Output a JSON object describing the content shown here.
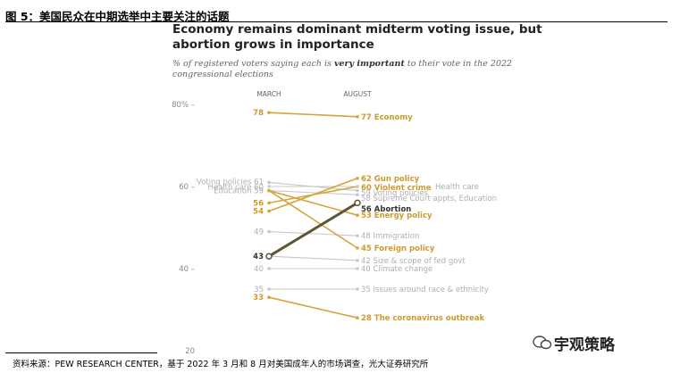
{
  "figure_title": "图 5：美国民众在中期选举中主要关注的话题",
  "source_note": "资料来源：PEW RESEARCH CENTER，基于 2022 年 3 月和 8 月对美国成年人的市场调查，光大证券研究所",
  "watermark": "宇观策略",
  "colors": {
    "accent": "#D4A53C",
    "muted": "#C8C8C8",
    "highlight": "#5E5534",
    "text_gold": "#CB9B2C",
    "text_grey": "#AFAFAF"
  },
  "chart_data": {
    "type": "line",
    "title": "Economy remains dominant midterm voting issue, but abortion grows in importance",
    "subtitle_prefix": "% of registered voters saying each is ",
    "subtitle_bold": "very important",
    "subtitle_suffix": " to their vote in the 2022 congressional elections",
    "x": [
      "MARCH",
      "AUGUST"
    ],
    "ylim": [
      20,
      80
    ],
    "yticks": [
      {
        "value": 80,
        "label": "80% –"
      },
      {
        "value": 60,
        "label": "60 –"
      },
      {
        "value": 40,
        "label": "40 –"
      },
      {
        "value": 20,
        "label": "20"
      }
    ],
    "series": [
      {
        "name": "Economy",
        "values": [
          78,
          77
        ],
        "style": "gold",
        "left_label": "78",
        "right_label": "77 Economy"
      },
      {
        "name": "Gun policy",
        "values": [
          54,
          62
        ],
        "style": "gold",
        "left_label": "54",
        "right_label": "62 Gun policy"
      },
      {
        "name": "Violent crime",
        "values": [
          56,
          60
        ],
        "style": "gold",
        "left_label": "56",
        "right_label": "60 Violent crime"
      },
      {
        "name": "Health care",
        "values": [
          60,
          60
        ],
        "style": "grey",
        "left_label": "Health care 60",
        "right_label": "Health care",
        "right_inline": true
      },
      {
        "name": "Voting policies",
        "values": [
          61,
          59
        ],
        "style": "grey",
        "left_label": "Voting policies 61",
        "right_label": "59 Voting policies"
      },
      {
        "name": "Supreme Court appts, Education",
        "values": [
          59,
          58
        ],
        "style": "grey",
        "left_label": "Education 59",
        "right_label": "58 Supreme Court appts, Education"
      },
      {
        "name": "Abortion",
        "values": [
          43,
          56
        ],
        "style": "dark",
        "left_label": "43",
        "right_label": "56 Abortion"
      },
      {
        "name": "Energy policy",
        "values": [
          59,
          53
        ],
        "style": "gold",
        "left_label": "",
        "right_label": "53 Energy policy"
      },
      {
        "name": "Immigration",
        "values": [
          49,
          48
        ],
        "style": "grey",
        "left_label": "49",
        "right_label": "48 Immigration"
      },
      {
        "name": "Foreign policy",
        "values": [
          59,
          45
        ],
        "style": "gold",
        "left_label": "",
        "right_label": "45 Foreign policy"
      },
      {
        "name": "Size & scope of fed govt",
        "values": [
          43,
          42
        ],
        "style": "grey",
        "left_label": "",
        "right_label": "42 Size & scope of fed govt"
      },
      {
        "name": "Climate change",
        "values": [
          40,
          40
        ],
        "style": "grey",
        "left_label": "40",
        "right_label": "40 Climate change"
      },
      {
        "name": "Issues around race & ethnicity",
        "values": [
          35,
          35
        ],
        "style": "grey",
        "left_label": "35",
        "right_label": "35 Issues around race & ethnicity"
      },
      {
        "name": "The coronavirus outbreak",
        "values": [
          33,
          28
        ],
        "style": "gold",
        "left_label": "33",
        "right_label": "28 The coronavirus outbreak"
      }
    ]
  }
}
